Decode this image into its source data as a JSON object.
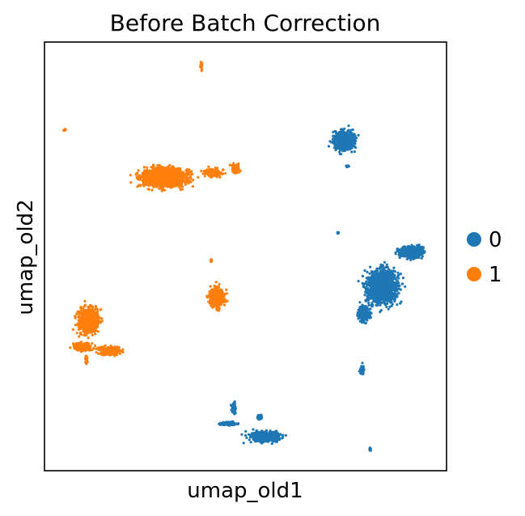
{
  "chart_data": {
    "type": "scatter",
    "title": "Before Batch Correction",
    "xlabel": "umap_old1",
    "ylabel": "umap_old2",
    "xticks": [],
    "yticks": [],
    "grid": false,
    "legend_position": "right",
    "xlim": [
      0,
      100
    ],
    "ylim": [
      0,
      100
    ],
    "legend": [
      {
        "label": "0",
        "color": "#1f77b4"
      },
      {
        "label": "1",
        "color": "#ff7f0e"
      }
    ],
    "series": [
      {
        "name": "0",
        "color": "#1f77b4",
        "clusters": [
          {
            "cx": 74.5,
            "cy": 77.0,
            "rx": 4.2,
            "ry": 3.6
          },
          {
            "cx": 75.3,
            "cy": 71.0,
            "rx": 0.6,
            "ry": 0.6
          },
          {
            "cx": 73.0,
            "cy": 55.5,
            "rx": 0.3,
            "ry": 0.3
          },
          {
            "cx": 91.0,
            "cy": 51.0,
            "rx": 4.8,
            "ry": 2.3
          },
          {
            "cx": 84.0,
            "cy": 43.0,
            "rx": 5.8,
            "ry": 6.2
          },
          {
            "cx": 79.5,
            "cy": 36.5,
            "rx": 2.2,
            "ry": 2.8
          },
          {
            "cx": 79.0,
            "cy": 23.5,
            "rx": 1.0,
            "ry": 1.6
          },
          {
            "cx": 55.0,
            "cy": 8.0,
            "rx": 6.0,
            "ry": 1.8
          },
          {
            "cx": 46.0,
            "cy": 11.0,
            "rx": 3.2,
            "ry": 0.7
          },
          {
            "cx": 47.0,
            "cy": 14.5,
            "rx": 0.8,
            "ry": 2.0
          },
          {
            "cx": 53.5,
            "cy": 12.5,
            "rx": 1.0,
            "ry": 1.0
          },
          {
            "cx": 81.0,
            "cy": 5.0,
            "rx": 0.4,
            "ry": 0.5
          }
        ]
      },
      {
        "name": "1",
        "color": "#ff7f0e",
        "clusters": [
          {
            "cx": 39.0,
            "cy": 94.5,
            "rx": 0.4,
            "ry": 1.6
          },
          {
            "cx": 5.0,
            "cy": 79.5,
            "rx": 0.4,
            "ry": 0.3
          },
          {
            "cx": 30.0,
            "cy": 68.5,
            "rx": 9.5,
            "ry": 3.5
          },
          {
            "cx": 42.0,
            "cy": 69.5,
            "rx": 3.5,
            "ry": 1.5
          },
          {
            "cx": 47.5,
            "cy": 70.5,
            "rx": 1.5,
            "ry": 1.5
          },
          {
            "cx": 41.5,
            "cy": 49.0,
            "rx": 0.3,
            "ry": 0.4
          },
          {
            "cx": 43.0,
            "cy": 40.5,
            "rx": 3.0,
            "ry": 3.5
          },
          {
            "cx": 11.0,
            "cy": 35.0,
            "rx": 4.0,
            "ry": 4.5
          },
          {
            "cx": 9.5,
            "cy": 29.0,
            "rx": 3.5,
            "ry": 1.5
          },
          {
            "cx": 16.0,
            "cy": 28.0,
            "rx": 4.5,
            "ry": 1.5
          },
          {
            "cx": 10.5,
            "cy": 26.0,
            "rx": 0.5,
            "ry": 1.5
          }
        ]
      }
    ]
  }
}
